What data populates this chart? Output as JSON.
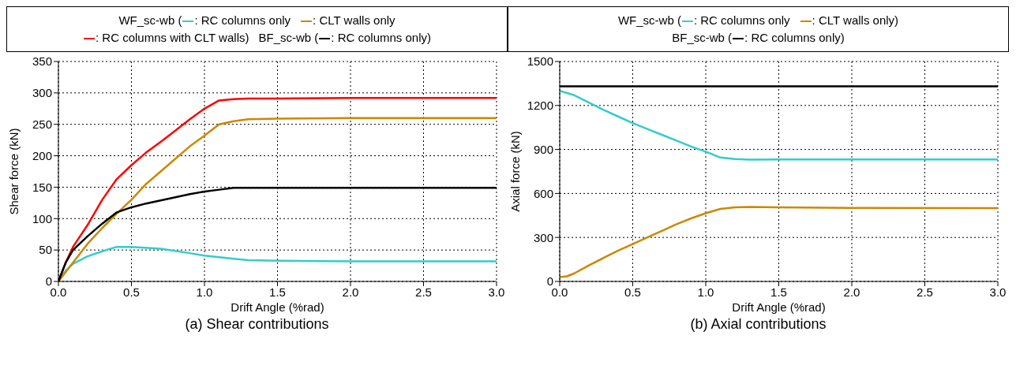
{
  "chart_data": [
    {
      "type": "line",
      "title": "(a) Shear contributions",
      "xlabel": "Drift Angle (%rad)",
      "ylabel": "Shear force (kN)",
      "annotations": [
        "WF_sc-wb (",
        "BF_sc-wb ("
      ],
      "legend": "top",
      "grid": true,
      "marker": "none",
      "line_style": "solid",
      "xlim": [
        0,
        3
      ],
      "xticks": [
        {
          "value": 0,
          "label": "0.0"
        },
        {
          "value": 0.5,
          "label": "0.5"
        },
        {
          "value": 1,
          "label": "1.0"
        },
        {
          "value": 1.5,
          "label": "1.5"
        },
        {
          "value": 2,
          "label": "2.0"
        },
        {
          "value": 2.5,
          "label": "2.5"
        },
        {
          "value": 3,
          "label": "3.0"
        }
      ],
      "ylim": [
        0,
        350
      ],
      "yticks": [
        0,
        50,
        100,
        150,
        200,
        250,
        300,
        350
      ],
      "series": [
        {
          "name": ": RC columns only",
          "color": "#33cccc",
          "x": [
            0,
            0.05,
            0.1,
            0.2,
            0.3,
            0.4,
            0.5,
            0.7,
            0.9,
            1.0,
            1.2,
            1.3,
            1.5,
            2.0,
            3.0
          ],
          "values": [
            0,
            17,
            28,
            40,
            48,
            55,
            55,
            52,
            45,
            41,
            36,
            34,
            33,
            32,
            32
          ]
        },
        {
          "name": ": CLT walls only",
          "color": "#cc8800",
          "x": [
            0,
            0.1,
            0.2,
            0.3,
            0.4,
            0.5,
            0.6,
            0.7,
            0.8,
            0.9,
            1.0,
            1.1,
            1.2,
            1.3,
            1.5,
            2.0,
            3.0
          ],
          "values": [
            0,
            30,
            60,
            85,
            108,
            130,
            155,
            175,
            195,
            215,
            232,
            250,
            255,
            258,
            259,
            260,
            260
          ]
        },
        {
          "name": ": RC columns with CLT walls)",
          "color": "#ff0000",
          "x": [
            0,
            0.05,
            0.1,
            0.2,
            0.3,
            0.4,
            0.5,
            0.6,
            0.7,
            0.8,
            0.9,
            1.0,
            1.1,
            1.2,
            1.3,
            1.5,
            2.0,
            3.0
          ],
          "values": [
            0,
            30,
            55,
            90,
            130,
            163,
            185,
            205,
            222,
            240,
            258,
            275,
            288,
            290,
            291,
            291,
            292,
            292
          ]
        },
        {
          "name": ": RC columns only)",
          "color": "#000000",
          "x": [
            0,
            0.05,
            0.1,
            0.2,
            0.3,
            0.4,
            0.5,
            0.6,
            0.7,
            0.8,
            0.9,
            1.0,
            1.1,
            1.2,
            1.5,
            3.0
          ],
          "values": [
            0,
            30,
            50,
            72,
            92,
            110,
            118,
            124,
            129,
            134,
            139,
            143,
            146,
            149,
            149,
            149
          ]
        }
      ]
    },
    {
      "type": "line",
      "title": "(b) Axial contributions",
      "xlabel": "Drift Angle (%rad)",
      "ylabel": "Axial force (kN)",
      "annotations": [
        "WF_sc-wb (",
        "BF_sc-wb ("
      ],
      "legend": "top",
      "grid": true,
      "marker": "none",
      "line_style": "solid",
      "xlim": [
        0,
        3
      ],
      "xticks": [
        {
          "value": 0,
          "label": "0.0"
        },
        {
          "value": 0.5,
          "label": "0.5"
        },
        {
          "value": 1,
          "label": "1.0"
        },
        {
          "value": 1.5,
          "label": "1.5"
        },
        {
          "value": 2,
          "label": "2.0"
        },
        {
          "value": 2.5,
          "label": "2.5"
        },
        {
          "value": 3,
          "label": "3.0"
        }
      ],
      "ylim": [
        0,
        1500
      ],
      "yticks": [
        0,
        300,
        600,
        900,
        1200,
        1500
      ],
      "series": [
        {
          "name": ": RC columns only",
          "color": "#33cccc",
          "x": [
            0,
            0.1,
            0.2,
            0.3,
            0.4,
            0.5,
            0.6,
            0.7,
            0.8,
            0.9,
            1.0,
            1.1,
            1.2,
            1.3,
            1.5,
            2.0,
            3.0
          ],
          "values": [
            1300,
            1270,
            1220,
            1170,
            1125,
            1080,
            1040,
            1000,
            960,
            920,
            885,
            845,
            835,
            830,
            832,
            832,
            832
          ]
        },
        {
          "name": ": CLT walls only)",
          "color": "#cc8800",
          "x": [
            0,
            0.05,
            0.1,
            0.2,
            0.3,
            0.4,
            0.5,
            0.6,
            0.7,
            0.8,
            0.9,
            1.0,
            1.1,
            1.2,
            1.3,
            1.5,
            2.0,
            3.0
          ],
          "values": [
            30,
            35,
            55,
            110,
            160,
            210,
            255,
            300,
            345,
            390,
            430,
            465,
            495,
            505,
            508,
            505,
            502,
            500
          ]
        },
        {
          "name": ": RC columns only)",
          "color": "#000000",
          "x": [
            0,
            1.0,
            2.0,
            3.0
          ],
          "values": [
            1330,
            1330,
            1330,
            1330
          ]
        }
      ]
    }
  ]
}
